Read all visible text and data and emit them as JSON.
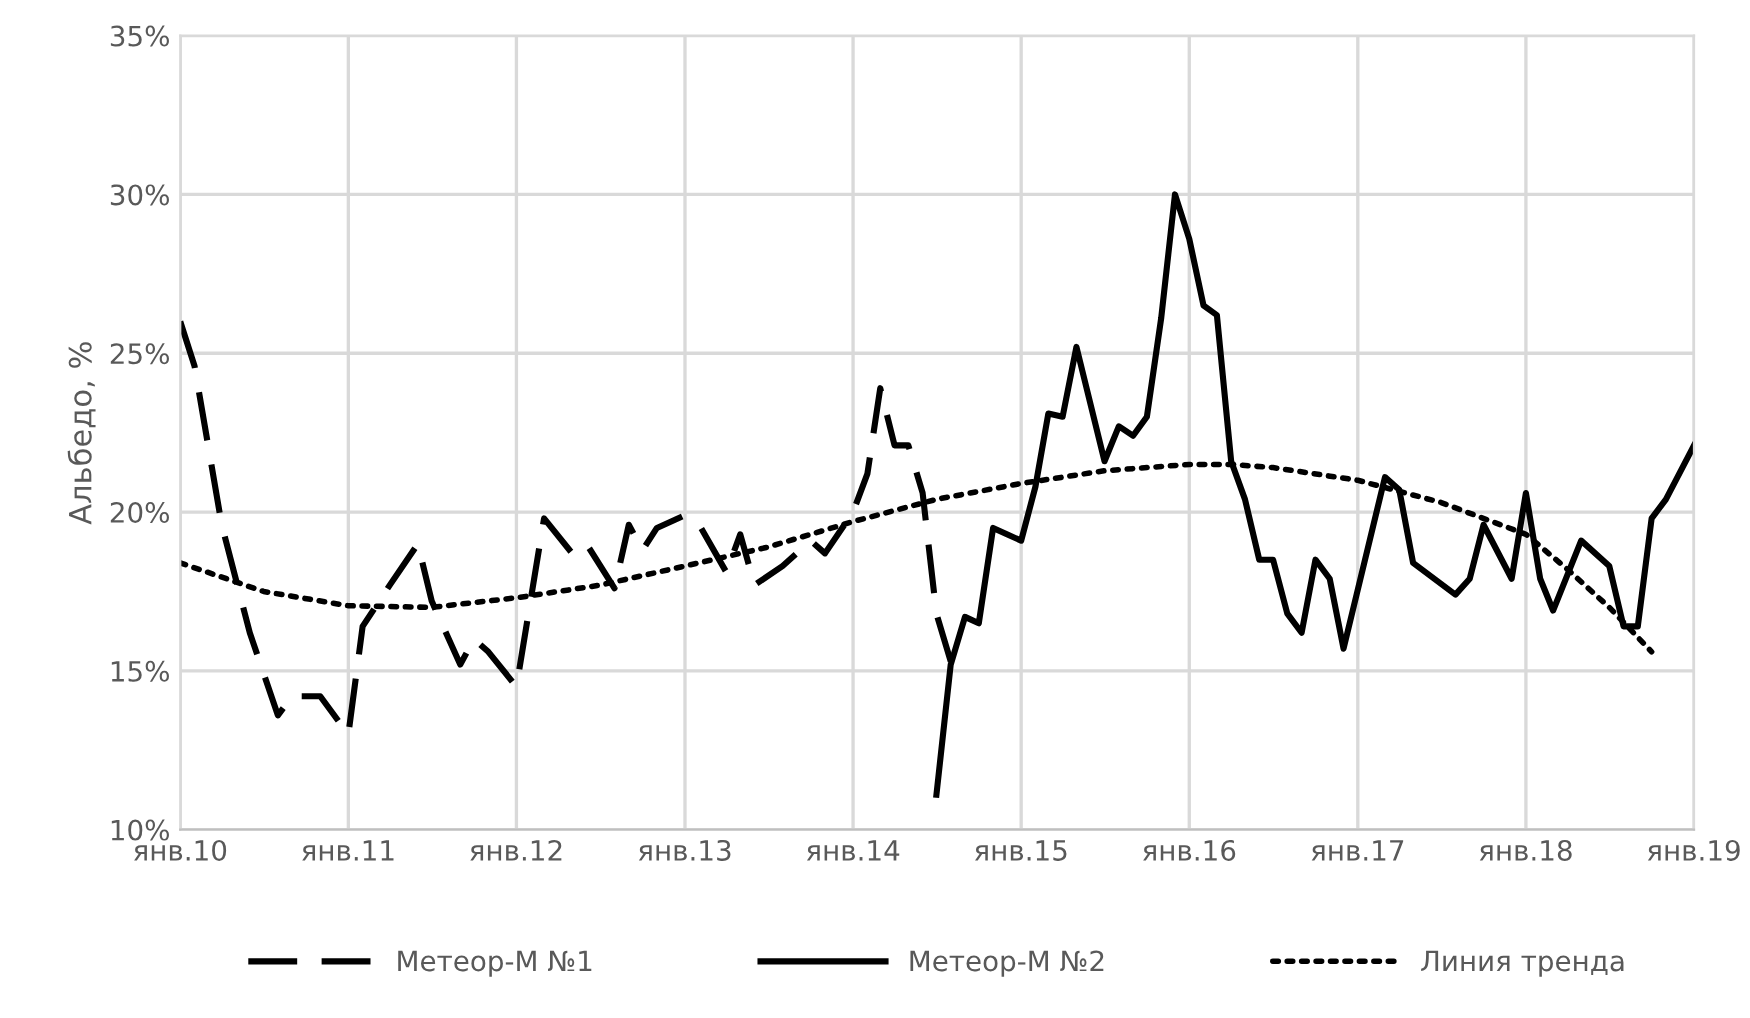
{
  "chart_data": {
    "type": "line",
    "ylabel": "Альбедо, %",
    "grid": true,
    "legend": "bottom",
    "xlim": [
      "2010-01",
      "2019-01"
    ],
    "xticks": [
      {
        "value": "2010-01",
        "label": "янв.10"
      },
      {
        "value": "2011-01",
        "label": "янв.11"
      },
      {
        "value": "2012-01",
        "label": "янв.12"
      },
      {
        "value": "2013-01",
        "label": "янв.13"
      },
      {
        "value": "2014-01",
        "label": "янв.14"
      },
      {
        "value": "2015-01",
        "label": "янв.15"
      },
      {
        "value": "2016-01",
        "label": "янв.16"
      },
      {
        "value": "2017-01",
        "label": "янв.17"
      },
      {
        "value": "2018-01",
        "label": "янв.18"
      },
      {
        "value": "2019-01",
        "label": "янв.19"
      }
    ],
    "ylim": [
      10,
      35
    ],
    "yticks": [
      {
        "value": 10,
        "label": "10%"
      },
      {
        "value": 15,
        "label": "15%"
      },
      {
        "value": 20,
        "label": "20%"
      },
      {
        "value": 25,
        "label": "25%"
      },
      {
        "value": 30,
        "label": "30%"
      },
      {
        "value": 35,
        "label": "35%"
      }
    ],
    "series": [
      {
        "name": "Метеор-М №1",
        "color": "#000000",
        "line_style": "dashed",
        "x": [
          "2010-01",
          "2010-02",
          "2010-04",
          "2010-06",
          "2010-08",
          "2010-09",
          "2010-11",
          "2011-01",
          "2011-02",
          "2011-04",
          "2011-06",
          "2011-07",
          "2011-09",
          "2011-10",
          "2011-11",
          "2012-01",
          "2012-03",
          "2012-05",
          "2012-06",
          "2012-08",
          "2012-09",
          "2012-10",
          "2012-11",
          "2013-01",
          "2013-02",
          "2013-04",
          "2013-05",
          "2013-06",
          "2013-08",
          "2013-10",
          "2013-11",
          "2014-01",
          "2014-02",
          "2014-03",
          "2014-04",
          "2014-05",
          "2014-06",
          "2014-07",
          "2014-08"
        ],
        "values": [
          26.0,
          24.6,
          19.6,
          16.2,
          13.6,
          14.2,
          14.2,
          13.0,
          16.4,
          17.7,
          19.0,
          17.2,
          15.2,
          16.0,
          15.6,
          14.5,
          19.8,
          18.7,
          19.0,
          17.6,
          19.6,
          18.8,
          19.5,
          19.9,
          19.6,
          18.1,
          19.3,
          17.7,
          18.3,
          19.1,
          18.7,
          20.0,
          21.2,
          23.9,
          22.1,
          22.1,
          20.6,
          16.8,
          15.3
        ]
      },
      {
        "name": "Метеор-М №2",
        "color": "#000000",
        "line_style": "solid",
        "x": [
          "2014-07",
          "2014-08",
          "2014-09",
          "2014-10",
          "2014-11",
          "2014-12",
          "2015-01",
          "2015-02",
          "2015-03",
          "2015-04",
          "2015-05",
          "2015-07",
          "2015-08",
          "2015-09",
          "2015-10",
          "2015-11",
          "2015-12",
          "2016-01",
          "2016-02",
          "2016-03",
          "2016-04",
          "2016-05",
          "2016-06",
          "2016-07",
          "2016-08",
          "2016-09",
          "2016-10",
          "2016-11",
          "2016-12",
          "2017-03",
          "2017-04",
          "2017-05",
          "2017-08",
          "2017-09",
          "2017-10",
          "2017-12",
          "2018-01",
          "2018-02",
          "2018-03",
          "2018-05",
          "2018-07",
          "2018-08",
          "2018-09",
          "2018-10",
          "2018-11",
          "2019-01"
        ],
        "values": [
          11.1,
          15.2,
          16.7,
          16.5,
          19.5,
          19.3,
          19.1,
          20.8,
          23.1,
          23.0,
          25.2,
          21.6,
          22.7,
          22.4,
          23.0,
          26.1,
          30.0,
          28.6,
          26.5,
          26.2,
          21.6,
          20.4,
          18.5,
          18.5,
          16.8,
          16.2,
          18.5,
          17.9,
          15.7,
          21.1,
          20.7,
          18.4,
          17.4,
          17.9,
          19.6,
          17.9,
          20.6,
          17.9,
          16.9,
          19.1,
          18.3,
          16.4,
          16.4,
          19.8,
          20.4,
          22.1
        ]
      },
      {
        "name": "Линия тренда",
        "color": "#000000",
        "line_style": "dotted",
        "x": [
          "2010-01",
          "2010-07",
          "2011-01",
          "2011-07",
          "2012-01",
          "2012-07",
          "2013-01",
          "2013-07",
          "2014-01",
          "2014-07",
          "2015-01",
          "2015-07",
          "2016-01",
          "2016-04",
          "2016-07",
          "2017-01",
          "2017-07",
          "2018-01",
          "2018-04",
          "2018-07",
          "2018-10"
        ],
        "values": [
          18.4,
          17.5,
          17.05,
          17.0,
          17.3,
          17.7,
          18.3,
          18.9,
          19.7,
          20.4,
          20.9,
          21.3,
          21.5,
          21.5,
          21.4,
          21.0,
          20.3,
          19.3,
          18.2,
          17.0,
          15.6
        ]
      }
    ]
  }
}
